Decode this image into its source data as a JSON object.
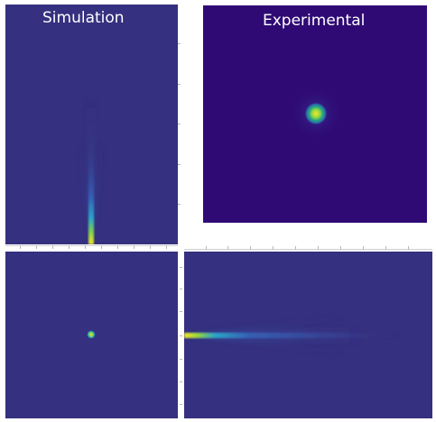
{
  "labels": {
    "simulation": "Simulation",
    "experimental": "Experimental"
  },
  "colors": {
    "background_dark": "#35307f",
    "experimental_background": "#2f0a75",
    "beam_yellow": "#f5e628",
    "beam_green": "#4ec46a",
    "beam_cyan": "#2aa7c6",
    "beam_blue": "#3560b4"
  }
}
